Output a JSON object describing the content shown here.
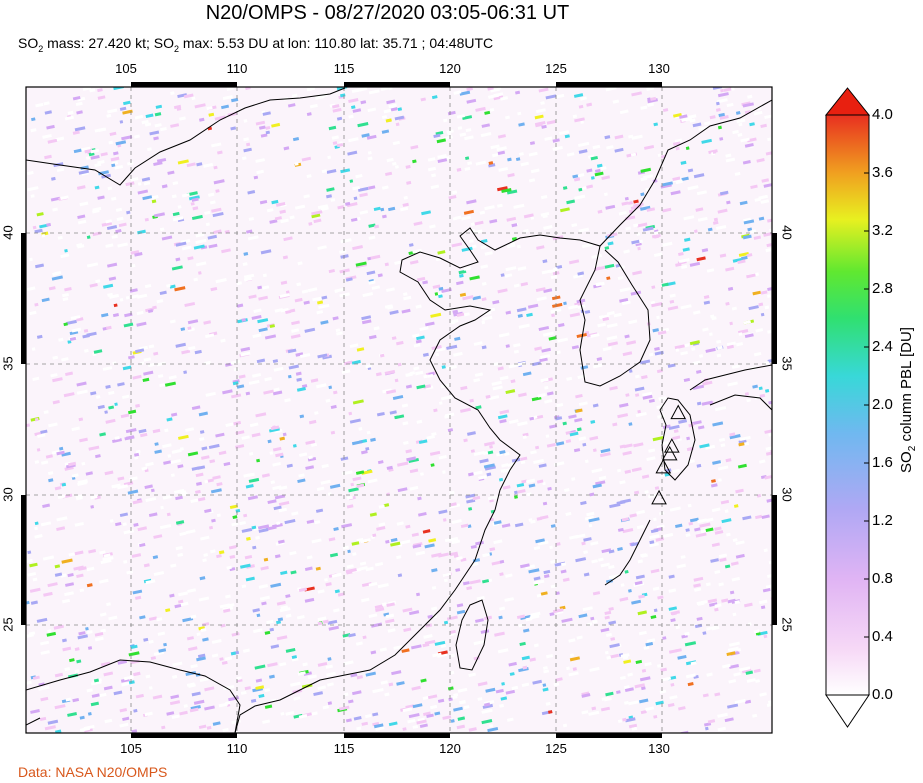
{
  "header": {
    "title": "N20/OMPS - 08/27/2020 03:05-06:31 UT",
    "subtitle_parts": {
      "so2_a": "SO",
      "sub_a": "2",
      "mass_text": " mass: 27.420 kt; ",
      "so2_b": "SO",
      "sub_b": "2",
      "max_text": " max: 5.53 DU at lon: 110.80 lat: 35.71 ; 04:48UTC"
    }
  },
  "map": {
    "lon_ticks": [
      "105",
      "110",
      "115",
      "120",
      "125",
      "130"
    ],
    "lat_ticks": [
      "40",
      "35",
      "30",
      "25"
    ],
    "lon_range": [
      100.5,
      135.5
    ],
    "lat_range": [
      20.5,
      45.5
    ]
  },
  "colorbar": {
    "ticks": [
      "4.0",
      "3.6",
      "3.2",
      "2.8",
      "2.4",
      "2.0",
      "1.6",
      "1.2",
      "0.8",
      "0.4",
      "0.0"
    ],
    "label_prefix": "SO",
    "label_sub": "2",
    "label_suffix": " column PBL [DU]",
    "colors": [
      "#ffffff",
      "#f4c8f4",
      "#d4a8f4",
      "#a8a8f4",
      "#70b0f0",
      "#40d8e8",
      "#30e090",
      "#30e030",
      "#b0f020",
      "#f0f020",
      "#f0b020",
      "#f07020",
      "#e83020"
    ]
  },
  "volcanoes": [
    {
      "lon": 131.1,
      "lat": 32.9
    },
    {
      "lon": 130.8,
      "lat": 31.6
    },
    {
      "lon": 130.7,
      "lat": 31.3
    },
    {
      "lon": 130.4,
      "lat": 30.8
    },
    {
      "lon": 130.2,
      "lat": 29.6
    }
  ],
  "credit": "Data: NASA N20/OMPS"
}
